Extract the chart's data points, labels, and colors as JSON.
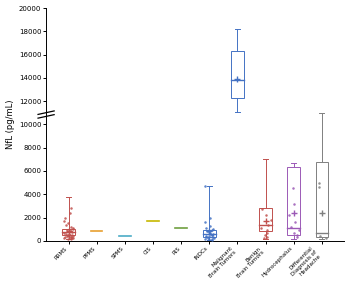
{
  "ylabel": "NfL (pg/mL)",
  "ylim": [
    0,
    20000
  ],
  "yticks": [
    0,
    2000,
    4000,
    6000,
    8000,
    10000,
    12000,
    14000,
    16000,
    18000,
    20000
  ],
  "background_color": "#ffffff",
  "boxes": [
    {
      "label": "RRMS",
      "color": "#c0504d",
      "median": 750,
      "q1": 480,
      "q3": 1050,
      "whisker_low": 120,
      "whisker_high": 3800,
      "points": [
        150,
        180,
        200,
        220,
        250,
        280,
        300,
        320,
        350,
        380,
        400,
        430,
        460,
        500,
        540,
        580,
        620,
        680,
        720,
        800,
        860,
        920,
        980,
        1100,
        1200,
        1350,
        1500,
        1700,
        2000,
        2400,
        2800
      ],
      "mean": 850,
      "show_mean": true,
      "box_visible": true
    },
    {
      "label": "PPMS",
      "color": "#e8a030",
      "median": 880,
      "q1": 820,
      "q3": 950,
      "whisker_low": 820,
      "whisker_high": 950,
      "points": [],
      "mean": 880,
      "show_mean": false,
      "box_visible": false
    },
    {
      "label": "SPMS",
      "color": "#4bacc6",
      "median": 430,
      "q1": 370,
      "q3": 490,
      "whisker_low": 370,
      "whisker_high": 490,
      "points": [],
      "mean": 430,
      "show_mean": false,
      "box_visible": false
    },
    {
      "label": "CIS",
      "color": "#c6b800",
      "median": 1720,
      "q1": 1660,
      "q3": 1780,
      "whisker_low": 1660,
      "whisker_high": 1780,
      "points": [],
      "mean": 1720,
      "show_mean": false,
      "box_visible": false
    },
    {
      "label": "RIS",
      "color": "#70a040",
      "median": 1100,
      "q1": 1020,
      "q3": 1180,
      "whisker_low": 1020,
      "whisker_high": 1180,
      "points": [],
      "mean": 1100,
      "show_mean": false,
      "box_visible": false
    },
    {
      "label": "INDCs",
      "color": "#4472c4",
      "median": 600,
      "q1": 350,
      "q3": 950,
      "whisker_low": 80,
      "whisker_high": 4700,
      "points": [
        100,
        130,
        160,
        190,
        220,
        260,
        300,
        340,
        380,
        420,
        460,
        510,
        560,
        620,
        680,
        750,
        820,
        900,
        980,
        1100,
        1300,
        1600,
        2000,
        4700
      ],
      "mean": 800,
      "show_mean": true,
      "box_visible": true
    },
    {
      "label": "Malignant\nBrain Tumors",
      "color": "#4472c4",
      "median": 13800,
      "q1": 12300,
      "q3": 16300,
      "whisker_low": 11100,
      "whisker_high": 18200,
      "points": [],
      "mean": 13900,
      "show_mean": true,
      "box_visible": true
    },
    {
      "label": "Benign\nBrain Tumors",
      "color": "#c0504d",
      "median": 1400,
      "q1": 800,
      "q3": 2800,
      "whisker_low": 150,
      "whisker_high": 7000,
      "points": [
        200,
        350,
        500,
        700,
        900,
        1100,
        1400,
        1800,
        2200,
        2700
      ],
      "mean": 1700,
      "show_mean": true,
      "box_visible": true
    },
    {
      "label": "Hydrocephalus",
      "color": "#9b59b6",
      "median": 1100,
      "q1": 500,
      "q3": 6300,
      "whisker_low": 150,
      "whisker_high": 6700,
      "points": [
        300,
        500,
        700,
        900,
        1200,
        1600,
        2200,
        3200,
        4500
      ],
      "mean": 2400,
      "show_mean": true,
      "box_visible": true
    },
    {
      "label": "Differential\nDiagnosis of\nHeadache",
      "color": "#808080",
      "median": 650,
      "q1": 350,
      "q3": 6800,
      "whisker_low": 150,
      "whisker_high": 11000,
      "points": [
        250,
        400,
        4600,
        5000
      ],
      "mean": 2400,
      "show_mean": true,
      "box_visible": true
    }
  ]
}
